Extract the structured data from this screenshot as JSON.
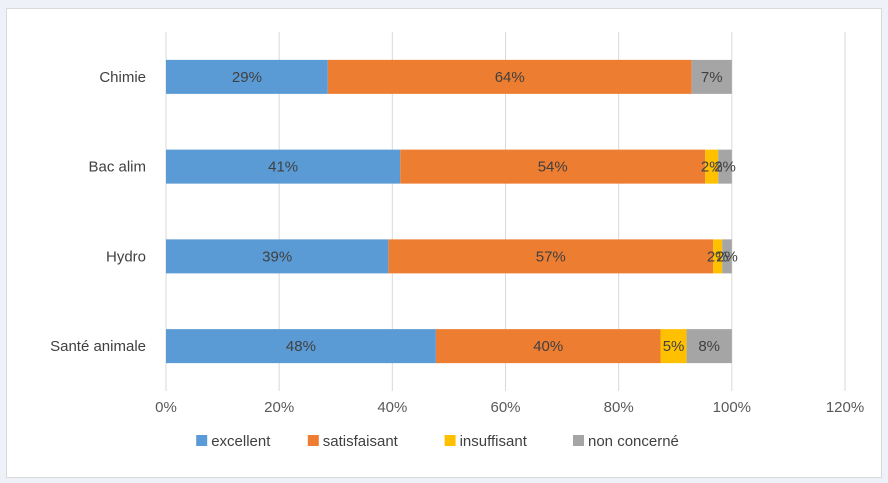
{
  "chart_data": {
    "type": "bar",
    "orientation": "horizontal",
    "stacked": true,
    "categories": [
      "Chimie",
      "Bac alim",
      "Hydro",
      "Santé animale"
    ],
    "series": [
      {
        "name": "excellent",
        "color": "#5b9bd5",
        "values": [
          28.6,
          41.4,
          39.3,
          47.7
        ],
        "labels": [
          "29%",
          "41%",
          "39%",
          "48%"
        ]
      },
      {
        "name": "satisfaisant",
        "color": "#ed7d31",
        "values": [
          64.3,
          53.9,
          57.4,
          39.7
        ],
        "labels": [
          "64%",
          "54%",
          "57%",
          "40%"
        ]
      },
      {
        "name": "insuffisant",
        "color": "#ffc000",
        "values": [
          0,
          2.3,
          1.6,
          4.6
        ],
        "labels": [
          "",
          "2%",
          "2%",
          "5%"
        ]
      },
      {
        "name": "non concerné",
        "color": "#a5a5a5",
        "values": [
          7.1,
          2.4,
          1.7,
          8.0
        ],
        "labels": [
          "7%",
          "2%",
          "2%",
          "8%"
        ]
      }
    ],
    "xlim": [
      0,
      120
    ],
    "x_ticks": [
      "0%",
      "20%",
      "40%",
      "60%",
      "80%",
      "100%",
      "120%"
    ],
    "grid": true,
    "legend_position": "bottom"
  }
}
